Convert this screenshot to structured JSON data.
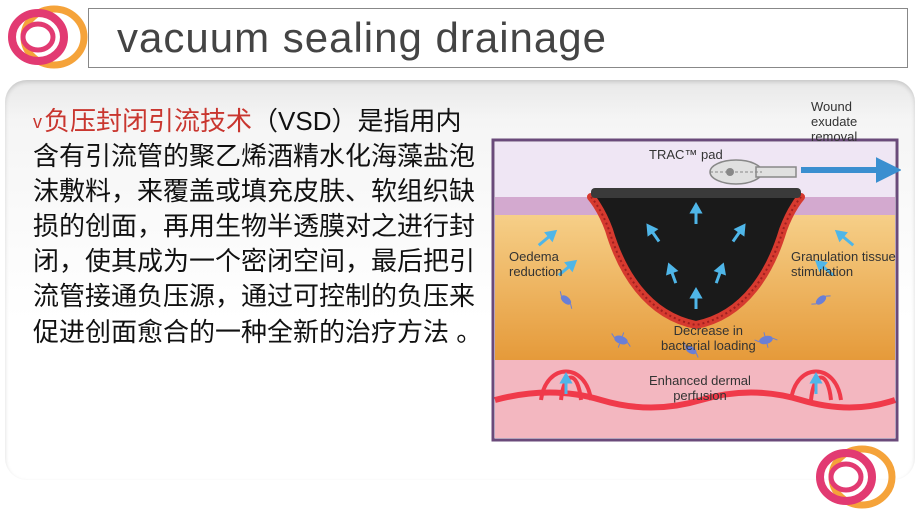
{
  "title": "vacuum sealing drainage",
  "body": {
    "bullet": "v",
    "red_term": "负压封闭引流技术",
    "rest": "（VSD）是指用内含有引流管的聚乙烯酒精水化海藻盐泡沫敷料，来覆盖或填充皮肤、软组织缺损的创面，再用生物半透膜对之进行封闭，使其成为一个密闭空间，最后把引流管接通负压源，通过可控制的负压来促进创面愈合的一种全新的治疗方法 。"
  },
  "diagram": {
    "labels": {
      "trac_pad": "TRAC™ pad",
      "wound_exudate": "Wound\nexudate removal",
      "oedema": "Oedema\nreduction",
      "granulation": "Granulation tissue\nstimulation",
      "bacterial": "Decrease in\nbacterial loading",
      "perfusion": "Enhanced dermal\nperfusion"
    },
    "colors": {
      "sky": "#efe6f4",
      "epidermis": "#d3a9cf",
      "dermis_top": "#f6cf88",
      "dermis_bot": "#e59a3a",
      "wound_fill": "#1a1a1a",
      "wound_border": "#d63a2f",
      "subdermal": "#f3b7c0",
      "vessel": "#f03a4a",
      "bacteria": "#6a7fd6",
      "arrow": "#4fb6e8",
      "arrow_out": "#3a8fd0",
      "device_body": "#e0e0e0",
      "device_stroke": "#888",
      "border": "#6a4a7a"
    }
  },
  "logo": {
    "ring_outer": "#f5a33a",
    "ring_mid": "#e23a72",
    "ring_inner": "#ffffff"
  }
}
